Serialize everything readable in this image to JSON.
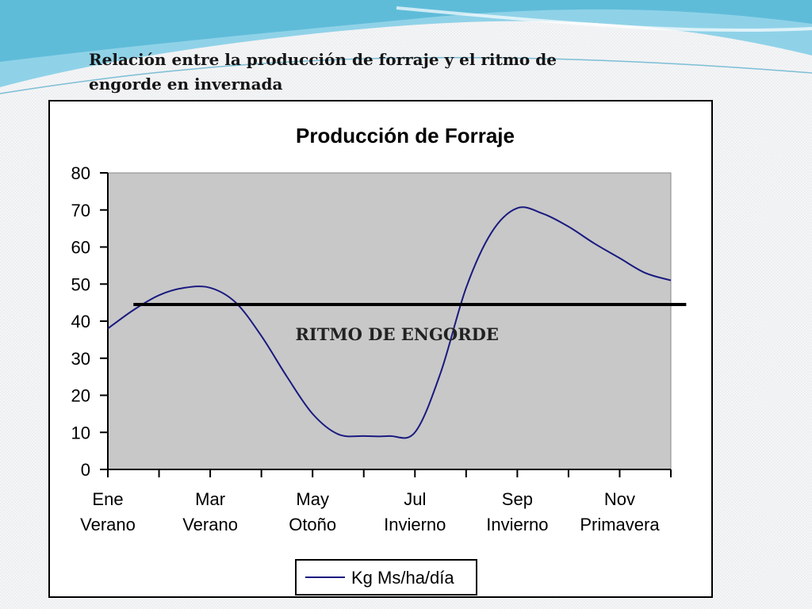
{
  "slide": {
    "title": "Relación entre la producción de forraje y el ritmo de engorde en invernada"
  },
  "colors": {
    "plot_background": "#c8c8c8",
    "series_line": "#1a1a80",
    "threshold_line": "#000000",
    "header_wave": "#5bb8d6"
  },
  "chart_data": {
    "type": "line",
    "title": "Producción de Forraje",
    "xlabel": "",
    "ylabel": "",
    "ylim": [
      0,
      80
    ],
    "y_ticks": [
      0,
      10,
      20,
      30,
      40,
      50,
      60,
      70,
      80
    ],
    "x_month_range": [
      0,
      11
    ],
    "categories": [
      {
        "month": "Ene",
        "season": "Verano"
      },
      {
        "month": "Mar",
        "season": "Verano"
      },
      {
        "month": "May",
        "season": "Otoño"
      },
      {
        "month": "Jul",
        "season": "Invierno"
      },
      {
        "month": "Sep",
        "season": "Invierno"
      },
      {
        "month": "Nov",
        "season": "Primavera"
      }
    ],
    "grid": false,
    "legend_position": "bottom",
    "series": [
      {
        "name": "Kg Ms/ha/día",
        "x": [
          0,
          0.5,
          1,
          1.5,
          2,
          2.5,
          3,
          3.5,
          4,
          4.5,
          5,
          5.5,
          6,
          6.5,
          7,
          7.5,
          8,
          8.5,
          9,
          9.5,
          10,
          10.5,
          11
        ],
        "values": [
          38,
          43,
          47,
          49,
          49,
          45,
          36,
          25,
          15,
          9.5,
          9,
          9,
          10,
          26,
          49,
          64,
          70.5,
          69,
          65.5,
          61,
          57,
          53,
          51
        ]
      }
    ],
    "threshold": {
      "label": "RITMO DE ENGORDE",
      "value": 44.5,
      "x_range": [
        0.5,
        11.3
      ]
    }
  }
}
